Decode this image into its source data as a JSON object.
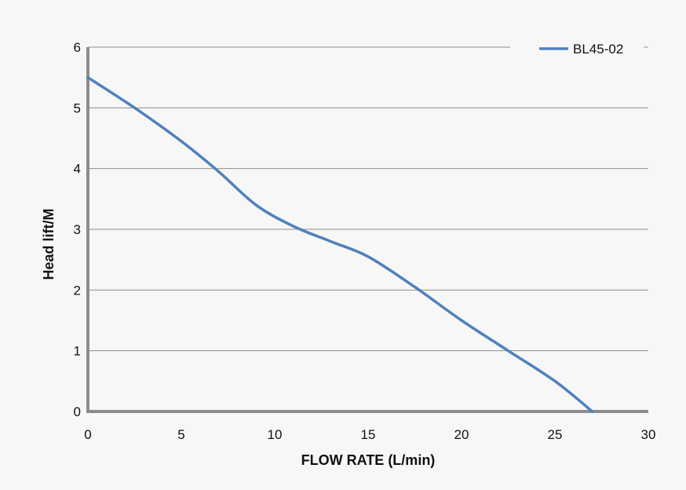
{
  "chart_data": {
    "type": "line",
    "xlabel": "FLOW RATE (L/min)",
    "ylabel": "Head lift/M",
    "xlim": [
      0,
      30
    ],
    "ylim": [
      0,
      6
    ],
    "x_ticks": [
      "0",
      "5",
      "10",
      "15",
      "20",
      "25",
      "30"
    ],
    "y_ticks": [
      "0",
      "1",
      "2",
      "3",
      "4",
      "5",
      "6"
    ],
    "grid": "horizontal",
    "legend_position": "top-right",
    "series": [
      {
        "name": "BL45-02",
        "color": "#4f81bd",
        "x": [
          0,
          2.5,
          5,
          7,
          9,
          11,
          13,
          15,
          17.5,
          20,
          22.5,
          25,
          27
        ],
        "y": [
          5.5,
          5.0,
          4.45,
          3.95,
          3.4,
          3.05,
          2.8,
          2.55,
          2.05,
          1.5,
          1.0,
          0.5,
          0.0
        ]
      }
    ]
  }
}
